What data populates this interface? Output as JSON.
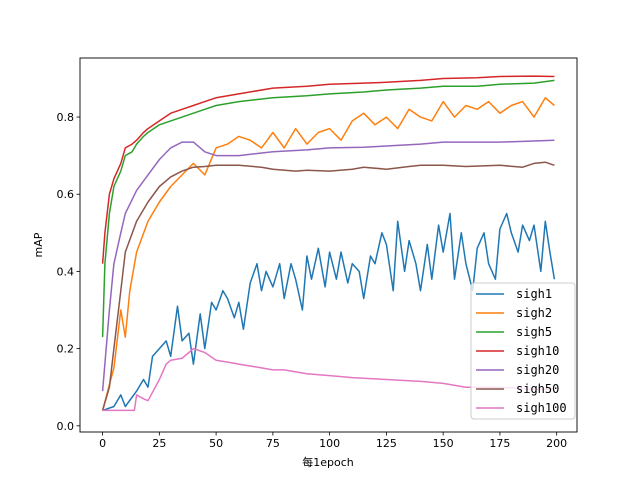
{
  "chart_data": {
    "type": "line",
    "title": "",
    "xlabel": "每1epoch",
    "ylabel": "mAP",
    "xlim": [
      -9.95,
      208.95
    ],
    "ylim": [
      -0.016,
      0.953
    ],
    "xticks": [
      0,
      25,
      50,
      75,
      100,
      125,
      150,
      175,
      200
    ],
    "yticks": [
      0.0,
      0.2,
      0.4,
      0.6,
      0.8
    ],
    "ytick_labels": [
      "0.0",
      "0.2",
      "0.4",
      "0.6",
      "0.8"
    ],
    "grid": false,
    "legend_position": "lower-right",
    "series": [
      {
        "name": "sigh1",
        "color": "#1f77b4",
        "x": [
          0,
          5,
          8,
          10,
          15,
          18,
          20,
          22,
          25,
          28,
          30,
          33,
          35,
          38,
          40,
          43,
          45,
          48,
          50,
          53,
          55,
          58,
          60,
          62,
          65,
          68,
          70,
          72,
          75,
          78,
          80,
          83,
          85,
          88,
          90,
          92,
          95,
          98,
          100,
          103,
          105,
          108,
          110,
          113,
          115,
          118,
          120,
          123,
          125,
          128,
          130,
          133,
          135,
          138,
          140,
          143,
          145,
          148,
          150,
          153,
          155,
          158,
          160,
          163,
          165,
          168,
          170,
          173,
          175,
          178,
          180,
          183,
          185,
          188,
          190,
          193,
          195,
          197,
          199
        ],
        "y": [
          0.04,
          0.05,
          0.08,
          0.05,
          0.09,
          0.12,
          0.1,
          0.18,
          0.2,
          0.22,
          0.18,
          0.31,
          0.22,
          0.24,
          0.16,
          0.29,
          0.2,
          0.32,
          0.3,
          0.35,
          0.33,
          0.28,
          0.32,
          0.25,
          0.37,
          0.42,
          0.35,
          0.4,
          0.36,
          0.42,
          0.33,
          0.42,
          0.38,
          0.3,
          0.44,
          0.38,
          0.46,
          0.36,
          0.45,
          0.38,
          0.45,
          0.37,
          0.42,
          0.4,
          0.33,
          0.44,
          0.42,
          0.5,
          0.47,
          0.35,
          0.53,
          0.4,
          0.48,
          0.42,
          0.35,
          0.47,
          0.38,
          0.52,
          0.45,
          0.55,
          0.38,
          0.5,
          0.42,
          0.35,
          0.46,
          0.5,
          0.42,
          0.38,
          0.51,
          0.55,
          0.5,
          0.45,
          0.52,
          0.48,
          0.52,
          0.4,
          0.53,
          0.45,
          0.38
        ]
      },
      {
        "name": "sigh2",
        "color": "#ff7f0e",
        "x": [
          0,
          5,
          8,
          10,
          12,
          15,
          20,
          25,
          30,
          35,
          40,
          45,
          50,
          55,
          60,
          65,
          70,
          75,
          80,
          85,
          90,
          95,
          100,
          105,
          110,
          115,
          120,
          125,
          130,
          135,
          140,
          145,
          150,
          155,
          160,
          165,
          170,
          175,
          180,
          185,
          190,
          195,
          199
        ],
        "y": [
          0.04,
          0.15,
          0.3,
          0.23,
          0.35,
          0.45,
          0.53,
          0.58,
          0.62,
          0.65,
          0.68,
          0.65,
          0.72,
          0.73,
          0.75,
          0.74,
          0.72,
          0.76,
          0.72,
          0.77,
          0.73,
          0.76,
          0.77,
          0.74,
          0.79,
          0.81,
          0.78,
          0.8,
          0.77,
          0.82,
          0.8,
          0.79,
          0.84,
          0.8,
          0.83,
          0.82,
          0.84,
          0.81,
          0.83,
          0.84,
          0.8,
          0.85,
          0.83
        ]
      },
      {
        "name": "sigh5",
        "color": "#2ca02c",
        "x": [
          0,
          1,
          3,
          5,
          8,
          10,
          13,
          15,
          18,
          20,
          25,
          30,
          35,
          40,
          45,
          50,
          60,
          75,
          90,
          100,
          115,
          125,
          140,
          150,
          165,
          175,
          190,
          199
        ],
        "y": [
          0.23,
          0.42,
          0.55,
          0.62,
          0.66,
          0.7,
          0.71,
          0.73,
          0.75,
          0.76,
          0.78,
          0.79,
          0.8,
          0.81,
          0.82,
          0.83,
          0.84,
          0.85,
          0.855,
          0.86,
          0.865,
          0.87,
          0.875,
          0.88,
          0.88,
          0.885,
          0.888,
          0.895
        ]
      },
      {
        "name": "sigh10",
        "color": "#d62728",
        "x": [
          0,
          1,
          3,
          5,
          8,
          10,
          13,
          15,
          18,
          20,
          25,
          30,
          35,
          40,
          45,
          50,
          60,
          75,
          90,
          100,
          115,
          125,
          140,
          150,
          165,
          175,
          190,
          199
        ],
        "y": [
          0.42,
          0.5,
          0.6,
          0.64,
          0.68,
          0.72,
          0.73,
          0.74,
          0.76,
          0.77,
          0.79,
          0.81,
          0.82,
          0.83,
          0.84,
          0.85,
          0.86,
          0.875,
          0.88,
          0.885,
          0.888,
          0.89,
          0.895,
          0.9,
          0.902,
          0.905,
          0.906,
          0.905
        ]
      },
      {
        "name": "sigh20",
        "color": "#9467bd",
        "x": [
          0,
          3,
          5,
          8,
          10,
          15,
          20,
          25,
          30,
          35,
          40,
          45,
          50,
          60,
          75,
          90,
          100,
          115,
          125,
          140,
          150,
          165,
          175,
          190,
          199
        ],
        "y": [
          0.09,
          0.3,
          0.42,
          0.5,
          0.55,
          0.61,
          0.65,
          0.69,
          0.72,
          0.735,
          0.735,
          0.71,
          0.7,
          0.7,
          0.71,
          0.715,
          0.72,
          0.722,
          0.725,
          0.73,
          0.735,
          0.735,
          0.735,
          0.738,
          0.74
        ]
      },
      {
        "name": "sigh50",
        "color": "#8c564b",
        "x": [
          0,
          3,
          5,
          8,
          10,
          15,
          20,
          25,
          30,
          35,
          40,
          45,
          50,
          60,
          70,
          75,
          85,
          90,
          100,
          110,
          115,
          125,
          135,
          140,
          150,
          160,
          175,
          185,
          190,
          195,
          199
        ],
        "y": [
          0.04,
          0.1,
          0.2,
          0.35,
          0.45,
          0.53,
          0.58,
          0.62,
          0.645,
          0.66,
          0.67,
          0.672,
          0.675,
          0.675,
          0.67,
          0.665,
          0.66,
          0.662,
          0.66,
          0.665,
          0.67,
          0.665,
          0.672,
          0.675,
          0.675,
          0.672,
          0.675,
          0.67,
          0.68,
          0.683,
          0.675
        ]
      },
      {
        "name": "sigh100",
        "color": "#e377c2",
        "x": [
          0,
          14,
          15,
          18,
          20,
          25,
          28,
          30,
          35,
          38,
          40,
          45,
          50,
          55,
          60,
          70,
          75,
          80,
          90,
          100,
          110,
          125,
          140,
          150,
          160,
          175,
          190,
          199
        ],
        "y": [
          0.04,
          0.04,
          0.08,
          0.07,
          0.065,
          0.12,
          0.16,
          0.17,
          0.175,
          0.19,
          0.2,
          0.19,
          0.17,
          0.165,
          0.16,
          0.15,
          0.145,
          0.145,
          0.135,
          0.13,
          0.125,
          0.12,
          0.115,
          0.11,
          0.1,
          0.1,
          0.095,
          0.095
        ]
      }
    ]
  }
}
